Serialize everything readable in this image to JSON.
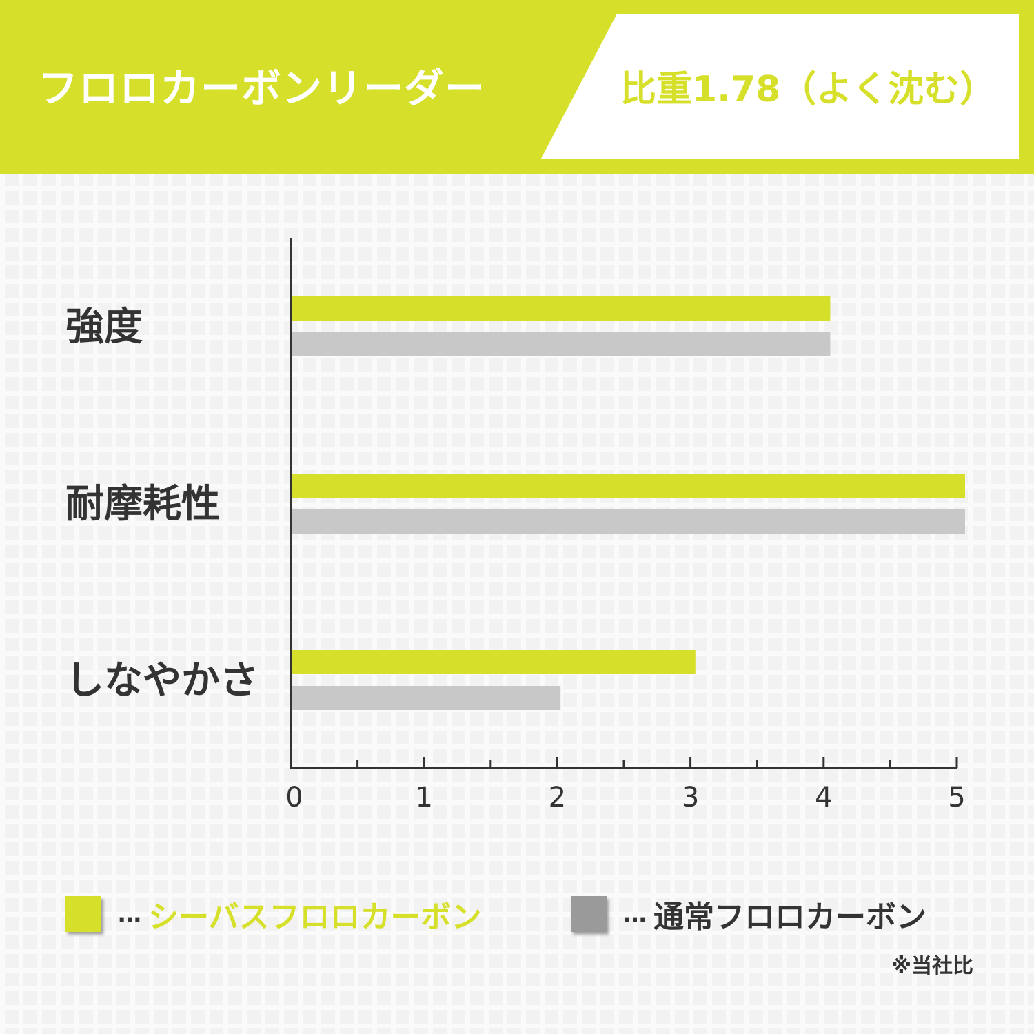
{
  "header": {
    "title": "フロロカーボンリーダー",
    "badge": "比重1.78（よく沈む）",
    "bg_color": "#d6e02a"
  },
  "chart_data": {
    "type": "bar",
    "orientation": "horizontal",
    "categories": [
      "強度",
      "耐摩耗性",
      "しなやかさ"
    ],
    "series": [
      {
        "name": "シーバスフロロカーボン",
        "color": "#d6e02a",
        "values": [
          4,
          5,
          3
        ]
      },
      {
        "name": "通常フロロカーボン",
        "color": "#c8c8c8",
        "values": [
          4,
          5,
          2
        ]
      }
    ],
    "x_ticks": [
      "0",
      "1",
      "2",
      "3",
      "4",
      "5"
    ],
    "xlim": [
      0,
      5
    ],
    "grid": false
  },
  "legend": {
    "separator": "…",
    "items": [
      {
        "label": "シーバスフロロカーボン",
        "swatch_color": "#d6e02a",
        "text_color": "#d6e02a"
      },
      {
        "label": "通常フロロカーボン",
        "swatch_color": "#9a9a9a",
        "text_color": "#333333"
      }
    ]
  },
  "note": "※当社比"
}
